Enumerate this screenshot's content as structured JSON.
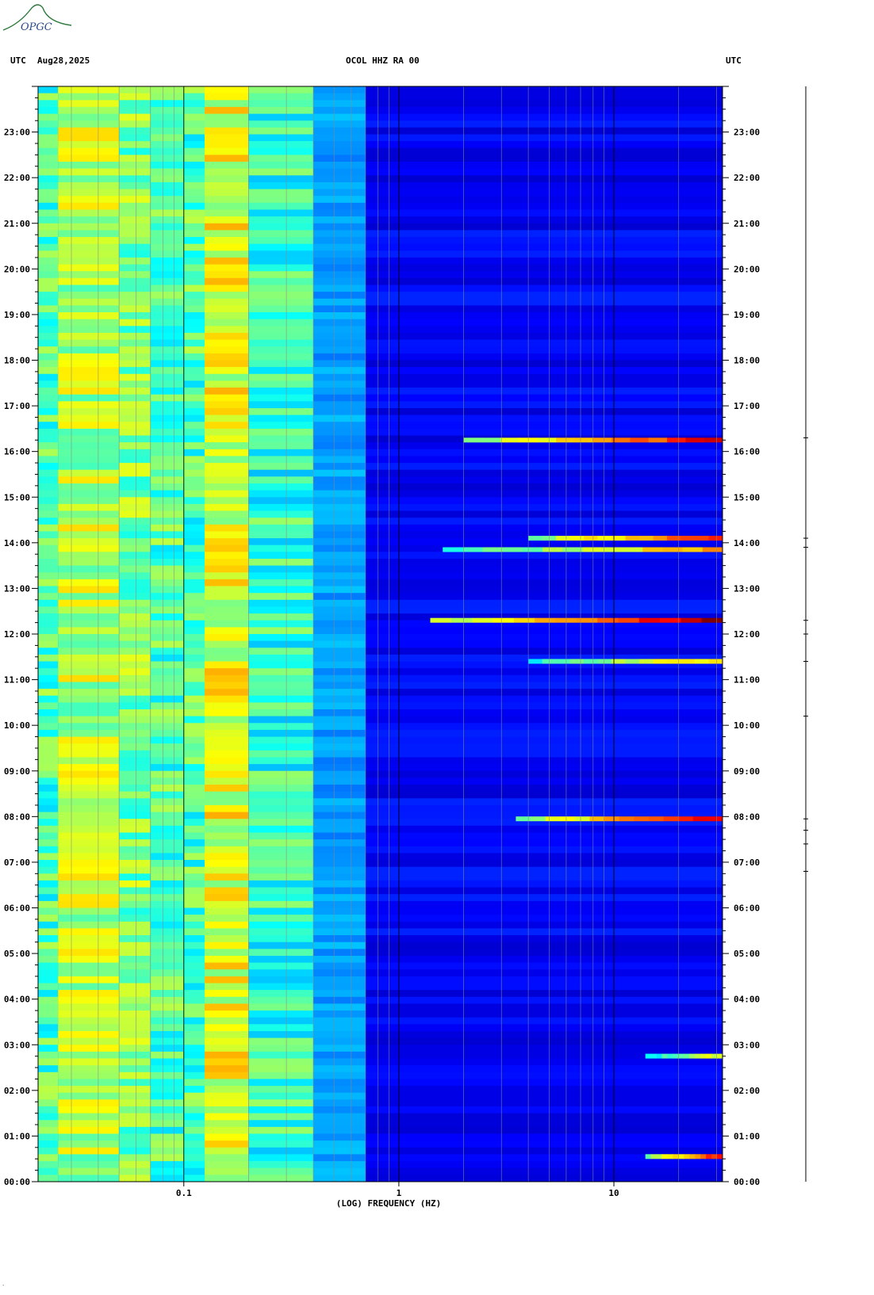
{
  "header": {
    "left_tz": "UTC",
    "date": "Aug28,2025",
    "station": "OCOL HHZ RA 00",
    "right_tz": "UTC"
  },
  "logo": {
    "text": "OPGC"
  },
  "footer_mark": "‵",
  "colors": {
    "background": "#0a2ee6",
    "low": "#0818d8",
    "mid": "#12c8f0",
    "high": "#e8f030",
    "peak": "#c81010"
  },
  "chart_data": {
    "type": "heatmap",
    "title": "OCOL HHZ RA 00",
    "xlabel": "(LOG) FREQUENCY (HZ)",
    "x_scale": "log",
    "xlim": [
      0.021,
      32
    ],
    "x_ticks": [
      {
        "value": 0.1,
        "label": "0.1"
      },
      {
        "value": 1,
        "label": "1"
      },
      {
        "value": 10,
        "label": "10"
      }
    ],
    "ylim_hours": [
      0,
      24
    ],
    "y_ticks": [
      "00:00",
      "01:00",
      "02:00",
      "03:00",
      "04:00",
      "05:00",
      "06:00",
      "07:00",
      "08:00",
      "09:00",
      "10:00",
      "11:00",
      "12:00",
      "13:00",
      "14:00",
      "15:00",
      "16:00",
      "17:00",
      "18:00",
      "19:00",
      "20:00",
      "21:00",
      "22:00",
      "23:00"
    ],
    "colormap": "jet",
    "bands": [
      {
        "f1": 0.021,
        "f2": 0.026,
        "level": 0.45
      },
      {
        "f1": 0.026,
        "f2": 0.05,
        "level": 0.55
      },
      {
        "f1": 0.05,
        "f2": 0.07,
        "level": 0.5
      },
      {
        "f1": 0.07,
        "f2": 0.1,
        "level": 0.45
      },
      {
        "f1": 0.1,
        "f2": 0.125,
        "level": 0.45
      },
      {
        "f1": 0.125,
        "f2": 0.2,
        "level": 0.6
      },
      {
        "f1": 0.2,
        "f2": 0.4,
        "level": 0.42
      },
      {
        "f1": 0.4,
        "f2": 0.7,
        "level": 0.28
      },
      {
        "f1": 0.7,
        "f2": 32,
        "level": 0.12
      }
    ],
    "events": [
      {
        "hour": 0.55,
        "f1": 14,
        "f2": 32,
        "level": 0.9
      },
      {
        "hour": 2.75,
        "f1": 14,
        "f2": 32,
        "level": 0.65
      },
      {
        "hour": 7.95,
        "f1": 3.5,
        "f2": 32,
        "level": 0.92
      },
      {
        "hour": 12.3,
        "f1": 1.4,
        "f2": 32,
        "level": 1.0
      },
      {
        "hour": 14.1,
        "f1": 4,
        "f2": 32,
        "level": 0.9
      },
      {
        "hour": 13.85,
        "f1": 1.6,
        "f2": 32,
        "level": 0.75
      },
      {
        "hour": 16.25,
        "f1": 2.0,
        "f2": 32,
        "level": 0.92
      },
      {
        "hour": 11.4,
        "f1": 4,
        "f2": 32,
        "level": 0.7
      }
    ]
  }
}
